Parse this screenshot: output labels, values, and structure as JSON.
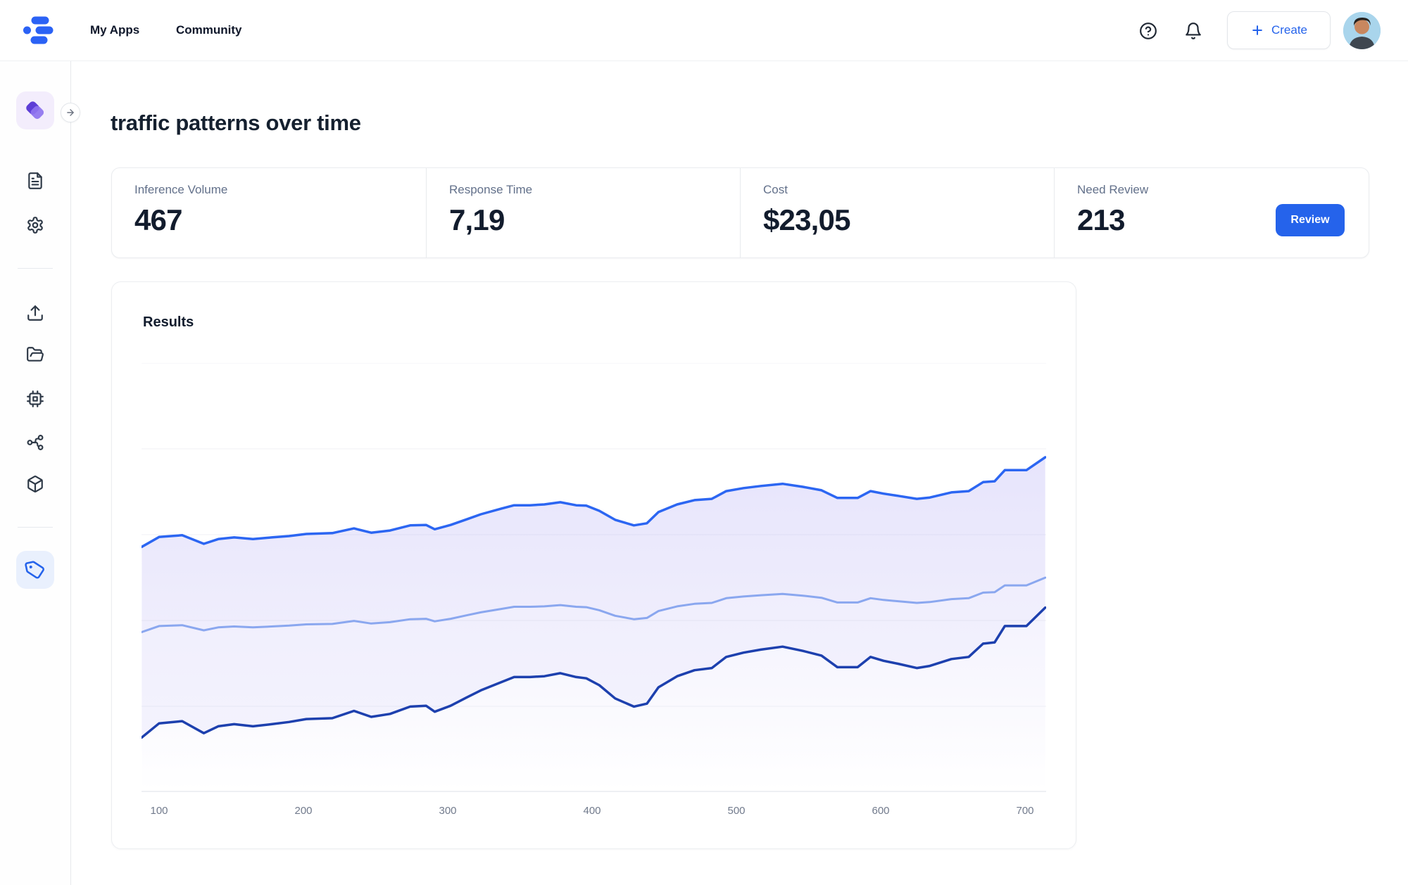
{
  "topbar": {
    "logo": "brand-dots-logo",
    "nav": [
      {
        "label": "My Apps"
      },
      {
        "label": "Community"
      }
    ],
    "icons": [
      "help-circle-icon",
      "bell-icon"
    ],
    "create_label": "Create",
    "accent_color": "#2563eb"
  },
  "sidebar": {
    "app_icon": "purple-leaves-app-icon",
    "collapse_icon": "arrow-right-icon",
    "items": [
      "file-text-icon",
      "gear-icon",
      "upload-icon",
      "folder-open-icon",
      "cpu-icon",
      "network-icon",
      "package-icon"
    ],
    "active_item": "tag-icon"
  },
  "page": {
    "title": "traffic patterns over time"
  },
  "stats": {
    "items": [
      {
        "label": "Inference Volume",
        "value": "467"
      },
      {
        "label": "Response Time",
        "value": "7,19"
      },
      {
        "label": "Cost",
        "value": "$23,05"
      },
      {
        "label": "Need Review",
        "value": "213"
      }
    ],
    "review_label": "Review"
  },
  "results_card": {
    "title": "Results"
  },
  "chart_data": {
    "type": "line",
    "title": "Results",
    "xlabel": "",
    "ylabel": "",
    "y_axis_labeled": false,
    "y_units": "relative 0-100 (y axis unlabeled in UI)",
    "x_ticks": [
      100,
      200,
      300,
      400,
      500,
      600,
      700
    ],
    "x_range": [
      88,
      714
    ],
    "ylim": [
      0,
      100
    ],
    "grid": "horizontal",
    "legend": "none",
    "fill_color": "#7163eb",
    "x": [
      88,
      100,
      116,
      131,
      141,
      152,
      165,
      178,
      190,
      202,
      220,
      235,
      247,
      260,
      274,
      285,
      291,
      302,
      313,
      323,
      337,
      346,
      357,
      367,
      378,
      389,
      396,
      405,
      416,
      429,
      438,
      446,
      459,
      471,
      483,
      493,
      505,
      517,
      532,
      546,
      559,
      570,
      584,
      593,
      602,
      612,
      625,
      634,
      649,
      661,
      671,
      679,
      686,
      701,
      714
    ],
    "series": [
      {
        "name": "upper",
        "color": "#2c66f2",
        "width": 3.5,
        "values": [
          57.1,
          59.4,
          59.8,
          57.8,
          58.9,
          59.3,
          58.9,
          59.3,
          59.6,
          60.1,
          60.3,
          61.4,
          60.4,
          60.9,
          62.1,
          62.2,
          61.2,
          62.2,
          63.5,
          64.7,
          66.0,
          66.8,
          66.8,
          67.0,
          67.5,
          66.8,
          66.7,
          65.5,
          63.4,
          62.1,
          62.6,
          65.2,
          67.0,
          68.0,
          68.3,
          70.1,
          70.8,
          71.3,
          71.8,
          71.1,
          70.3,
          68.5,
          68.5,
          70.1,
          69.5,
          69.0,
          68.3,
          68.6,
          69.8,
          70.1,
          72.2,
          72.4,
          75.0,
          75.0,
          78.0
        ]
      },
      {
        "name": "mid",
        "color": "#8aa7ef",
        "width": 3,
        "values": [
          37.2,
          38.6,
          38.8,
          37.6,
          38.3,
          38.5,
          38.3,
          38.5,
          38.7,
          39.0,
          39.1,
          39.8,
          39.2,
          39.5,
          40.2,
          40.3,
          39.7,
          40.3,
          41.1,
          41.8,
          42.6,
          43.1,
          43.1,
          43.2,
          43.5,
          43.1,
          43.0,
          42.3,
          41.0,
          40.2,
          40.5,
          42.1,
          43.2,
          43.8,
          44.0,
          45.1,
          45.5,
          45.8,
          46.1,
          45.7,
          45.2,
          44.1,
          44.1,
          45.1,
          44.7,
          44.4,
          44.0,
          44.2,
          44.9,
          45.1,
          46.4,
          46.5,
          48.1,
          48.1,
          49.9
        ]
      },
      {
        "name": "lower",
        "color": "#1d40ae",
        "width": 3.5,
        "values": [
          12.6,
          15.9,
          16.4,
          13.6,
          15.2,
          15.7,
          15.2,
          15.7,
          16.2,
          16.9,
          17.1,
          18.8,
          17.4,
          18.1,
          19.8,
          20.0,
          18.6,
          20.0,
          21.9,
          23.6,
          25.5,
          26.7,
          26.7,
          26.9,
          27.6,
          26.7,
          26.4,
          24.8,
          21.7,
          19.8,
          20.5,
          24.3,
          26.9,
          28.3,
          28.8,
          31.4,
          32.4,
          33.1,
          33.8,
          32.8,
          31.7,
          29.0,
          29.0,
          31.4,
          30.5,
          29.8,
          28.8,
          29.3,
          30.9,
          31.4,
          34.5,
          34.8,
          38.6,
          38.6,
          42.9
        ]
      }
    ]
  }
}
